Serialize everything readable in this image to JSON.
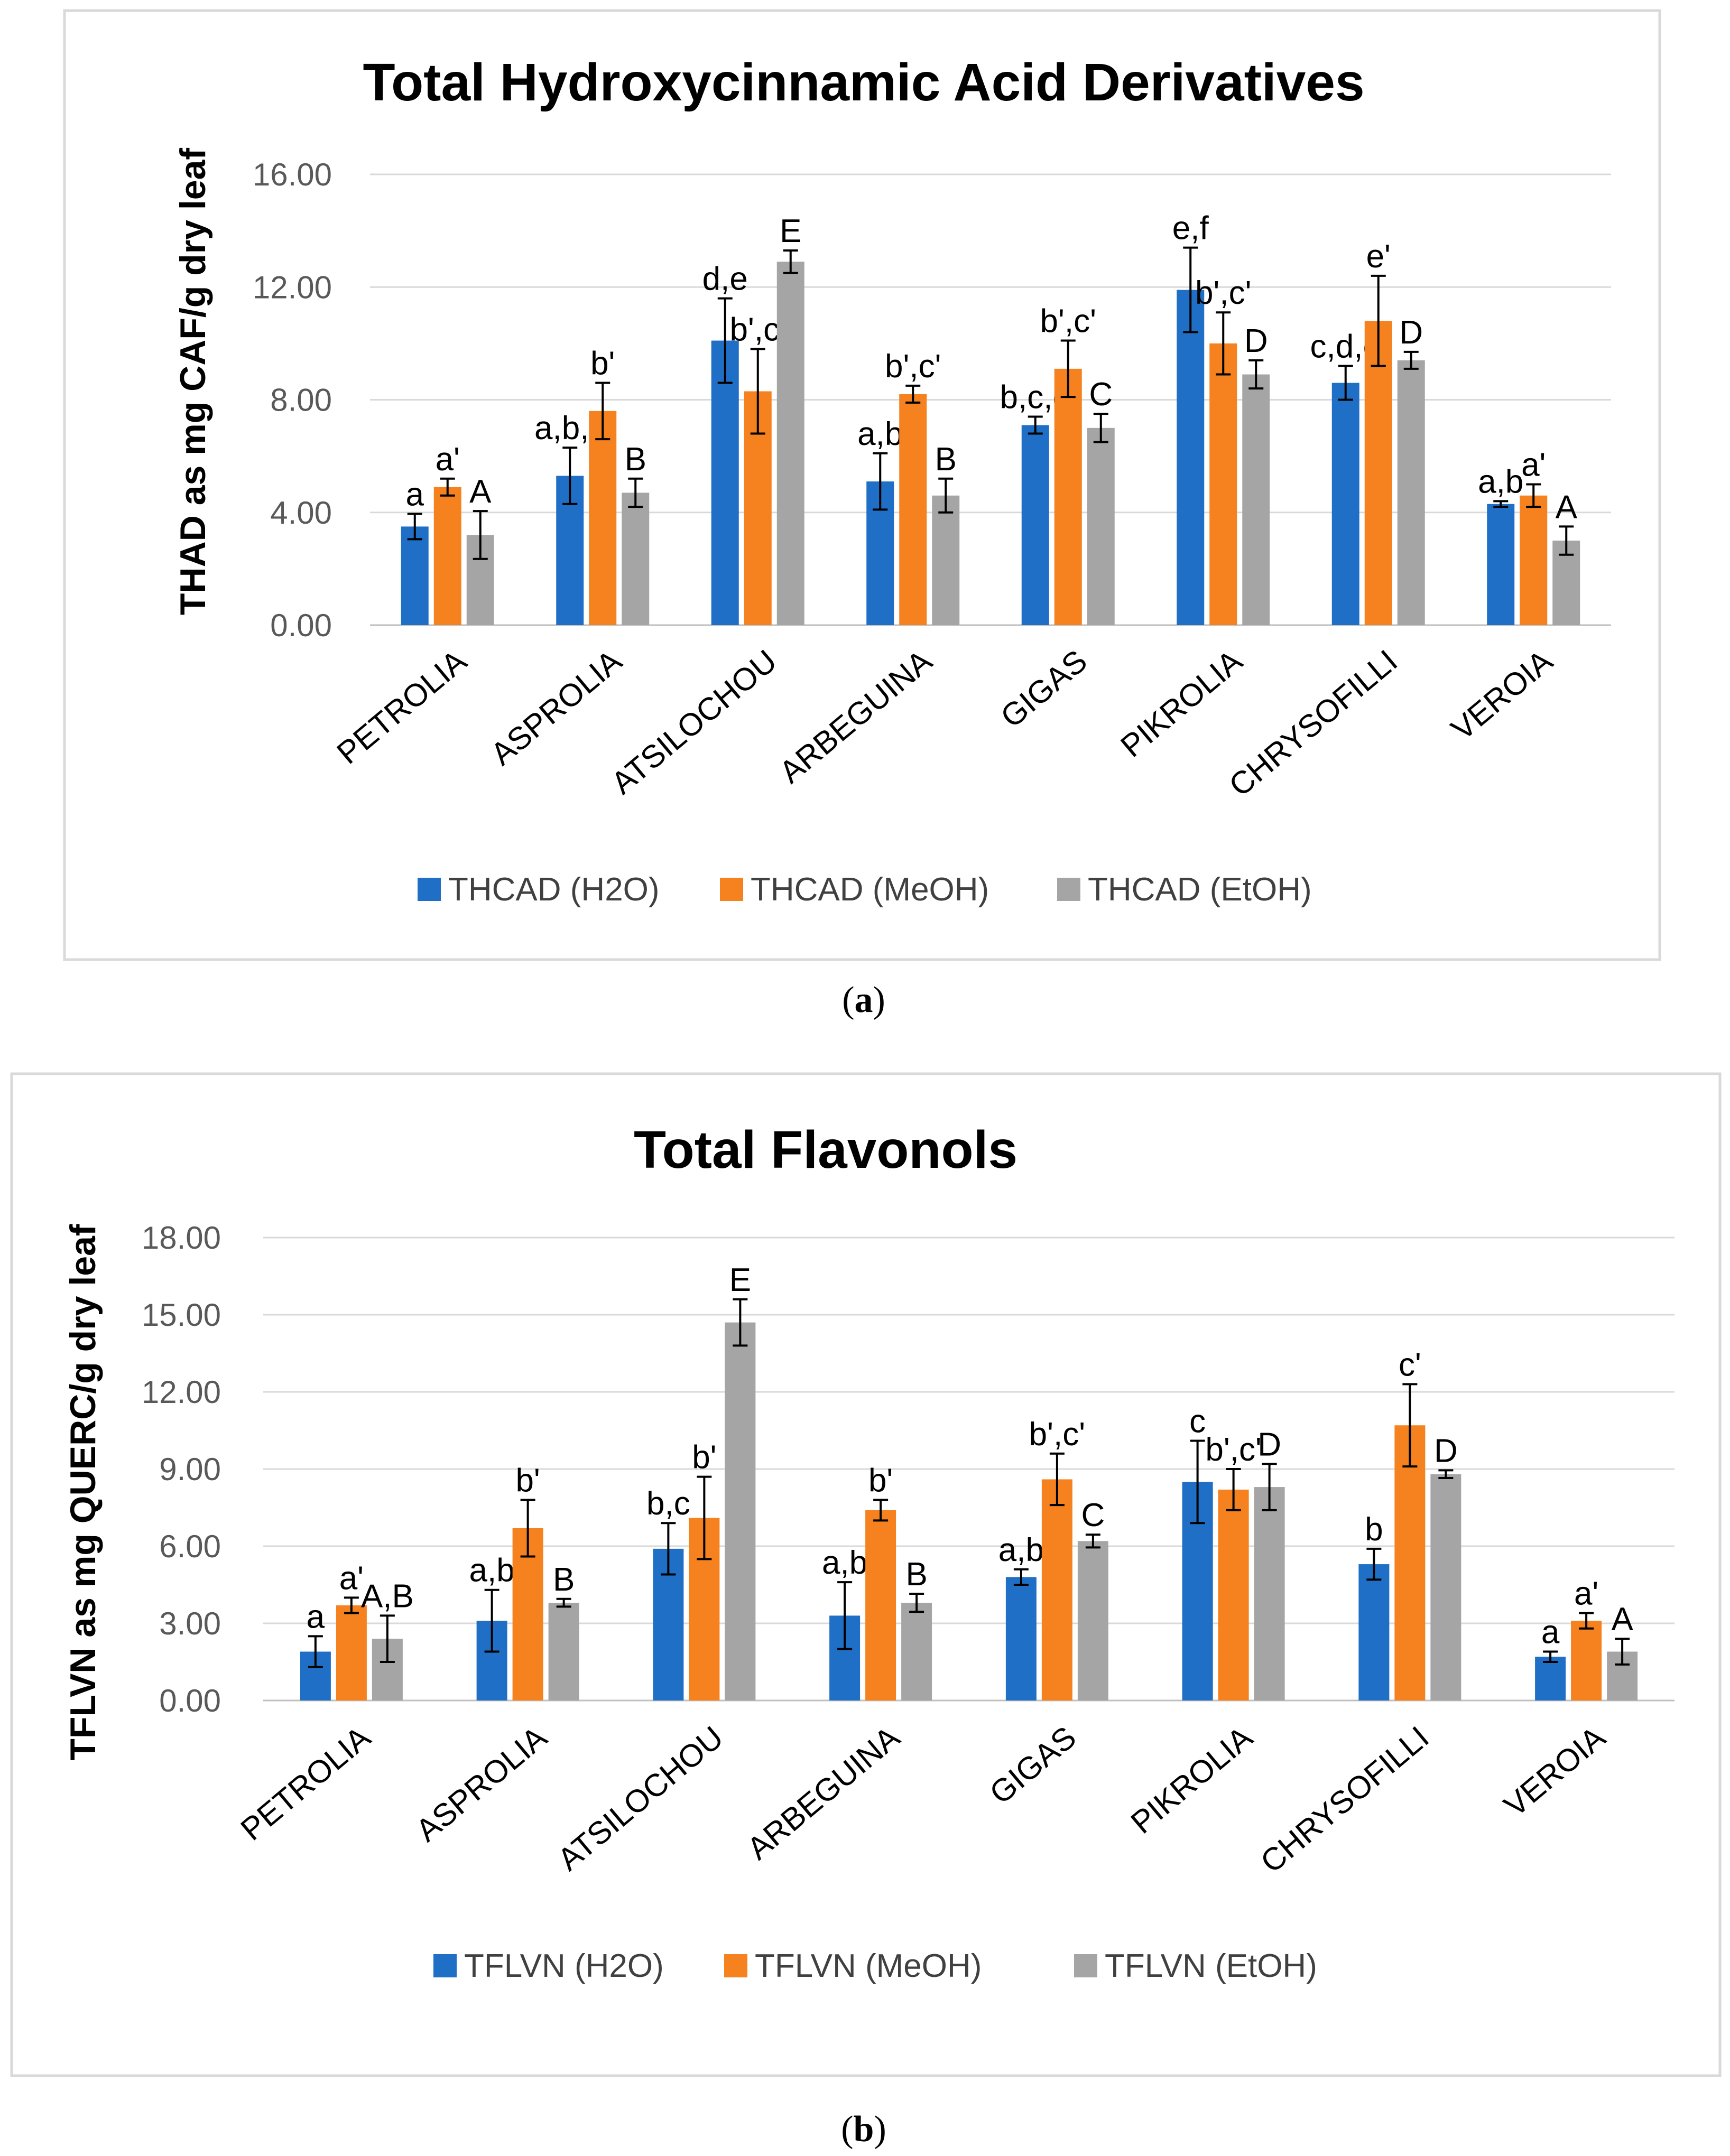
{
  "colors": {
    "h2o": "#1f6fc6",
    "meoh": "#f5811f",
    "etoh": "#a5a5a5",
    "grid": "#d9d9d9",
    "frame": "#d9d9d9"
  },
  "chart_data": [
    {
      "type": "bar",
      "title": "Total Hydroxycinnamic Acid Derivatives",
      "ylabel": "THAD as mg CAF/g dry leaf",
      "xlabel": "",
      "caption_letter": "a",
      "ylim": [
        0,
        16
      ],
      "ytick_values": [
        0,
        4,
        8,
        12,
        16
      ],
      "yticks": [
        "0.00",
        "4.00",
        "8.00",
        "12.00",
        "16.00"
      ],
      "legend_position": "bottom",
      "categories": [
        "PETROLIA",
        "ASPROLIA",
        "ATSILOCHOU",
        "ARBEGUINA",
        "GIGAS",
        "PIKROLIA",
        "CHRYSOFILLI",
        "VEROIA"
      ],
      "series": [
        {
          "name": "THCAD (H2O)",
          "color_key": "h2o",
          "values": [
            3.5,
            5.3,
            10.1,
            5.1,
            7.1,
            11.9,
            8.6,
            4.3
          ],
          "errors": [
            0.45,
            1.0,
            1.5,
            1.0,
            0.3,
            1.5,
            0.6,
            0.1
          ],
          "labels": [
            "a",
            "a,b,c",
            "d,e",
            "a,b",
            "b,c,d",
            "e,f",
            "c,d,e",
            "a,b"
          ]
        },
        {
          "name": "THCAD (MeOH)",
          "color_key": "meoh",
          "values": [
            4.9,
            7.6,
            8.3,
            8.2,
            9.1,
            10.0,
            10.8,
            4.6
          ],
          "errors": [
            0.3,
            1.0,
            1.5,
            0.3,
            1.0,
            1.1,
            1.6,
            0.4
          ],
          "labels": [
            "a'",
            "b'",
            "b',c'",
            "b',c'",
            "b',c'",
            "b',c'",
            "e'",
            "a'"
          ]
        },
        {
          "name": "THCAD (EtOH)",
          "color_key": "etoh",
          "values": [
            3.2,
            4.7,
            12.9,
            4.6,
            7.0,
            8.9,
            9.4,
            3.0
          ],
          "errors": [
            0.85,
            0.5,
            0.4,
            0.6,
            0.5,
            0.5,
            0.3,
            0.5
          ],
          "labels": [
            "A",
            "B",
            "E",
            "B",
            "C",
            "D",
            "D",
            "A"
          ]
        }
      ]
    },
    {
      "type": "bar",
      "title": "Total Flavonols",
      "ylabel": "TFLVN as mg QUERC/g dry leaf",
      "xlabel": "",
      "caption_letter": "b",
      "ylim": [
        0,
        18
      ],
      "ytick_values": [
        0,
        3,
        6,
        9,
        12,
        15,
        18
      ],
      "yticks": [
        "0.00",
        "3.00",
        "6.00",
        "9.00",
        "12.00",
        "15.00",
        "18.00"
      ],
      "legend_position": "bottom",
      "categories": [
        "PETROLIA",
        "ASPROLIA",
        "ATSILOCHOU",
        "ARBEGUINA",
        "GIGAS",
        "PIKROLIA",
        "CHRYSOFILLI",
        "VEROIA"
      ],
      "series": [
        {
          "name": "TFLVN (H2O)",
          "color_key": "h2o",
          "values": [
            1.9,
            3.1,
            5.9,
            3.3,
            4.8,
            8.5,
            5.3,
            1.7
          ],
          "errors": [
            0.6,
            1.2,
            1.0,
            1.3,
            0.3,
            1.6,
            0.6,
            0.2
          ],
          "labels": [
            "a",
            "a,b",
            "b,c",
            "a,b",
            "a,b",
            "c",
            "b",
            "a"
          ]
        },
        {
          "name": "TFLVN (MeOH)",
          "color_key": "meoh",
          "values": [
            3.7,
            6.7,
            7.1,
            7.4,
            8.6,
            8.2,
            10.7,
            3.1
          ],
          "errors": [
            0.3,
            1.1,
            1.6,
            0.4,
            1.0,
            0.8,
            1.6,
            0.3
          ],
          "labels": [
            "a'",
            "b'",
            "b'",
            "b'",
            "b',c'",
            "b',c'",
            "c'",
            "a'"
          ]
        },
        {
          "name": "TFLVN (EtOH)",
          "color_key": "etoh",
          "values": [
            2.4,
            3.8,
            14.7,
            3.8,
            6.2,
            8.3,
            8.8,
            1.9
          ],
          "errors": [
            0.9,
            0.15,
            0.9,
            0.35,
            0.25,
            0.9,
            0.15,
            0.5
          ],
          "labels": [
            "A,B",
            "B",
            "E",
            "B",
            "C",
            "D",
            "D",
            "A"
          ]
        }
      ]
    }
  ]
}
